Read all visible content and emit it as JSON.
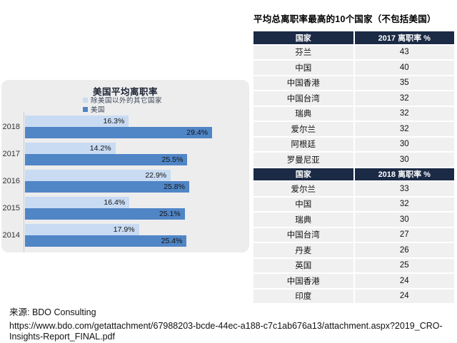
{
  "right_panel": {
    "title": "平均总离职率最高的10个国家（不包括美国）"
  },
  "chart_data": {
    "type": "bar",
    "orientation": "horizontal",
    "title": "美国平均离职率",
    "categories": [
      "2018",
      "2017",
      "2016",
      "2015",
      "2014"
    ],
    "series": [
      {
        "name": "除美国以外的其它国家",
        "color": "#c8dbf2",
        "values": [
          16.3,
          14.2,
          22.9,
          16.4,
          17.9
        ]
      },
      {
        "name": "美国",
        "color": "#5085c6",
        "values": [
          29.4,
          25.5,
          25.8,
          25.1,
          25.4
        ]
      }
    ],
    "value_suffix": "%",
    "xlim": [
      0,
      35
    ],
    "legend_position": "top-left",
    "grid": false
  },
  "tables": [
    {
      "headers": [
        "国家",
        "2017 离职率 %"
      ],
      "rows": [
        [
          "芬兰",
          "43"
        ],
        [
          "中国",
          "40"
        ],
        [
          "中国香港",
          "35"
        ],
        [
          "中国台湾",
          "32"
        ],
        [
          "瑞典",
          "32"
        ],
        [
          "爱尔兰",
          "32"
        ],
        [
          "阿根廷",
          "30"
        ],
        [
          "罗曼尼亚",
          "30"
        ]
      ]
    },
    {
      "headers": [
        "国家",
        "2018 离职率 %"
      ],
      "rows": [
        [
          "爱尔兰",
          "33"
        ],
        [
          "中国",
          "32"
        ],
        [
          "瑞典",
          "30"
        ],
        [
          "中国台湾",
          "27"
        ],
        [
          "丹麦",
          "26"
        ],
        [
          "英国",
          "25"
        ],
        [
          "中国香港",
          "24"
        ],
        [
          "印度",
          "24"
        ]
      ]
    }
  ],
  "source": {
    "label": "来源: BDO Consulting",
    "url_lines": [
      "https://www.bdo.com/getattachment/67988203-bcde-44ec-a188-c7c1ab676a13/attachment.aspx?2019_CRO-",
      "Insights-Report_FINAL.pdf"
    ]
  },
  "colors": {
    "panel_bg": "#ededee",
    "table_header_bg": "#1b2a45",
    "table_row_bg": "#f0f0f1",
    "bar_other_countries": "#c8dbf2",
    "bar_us": "#5085c6"
  }
}
